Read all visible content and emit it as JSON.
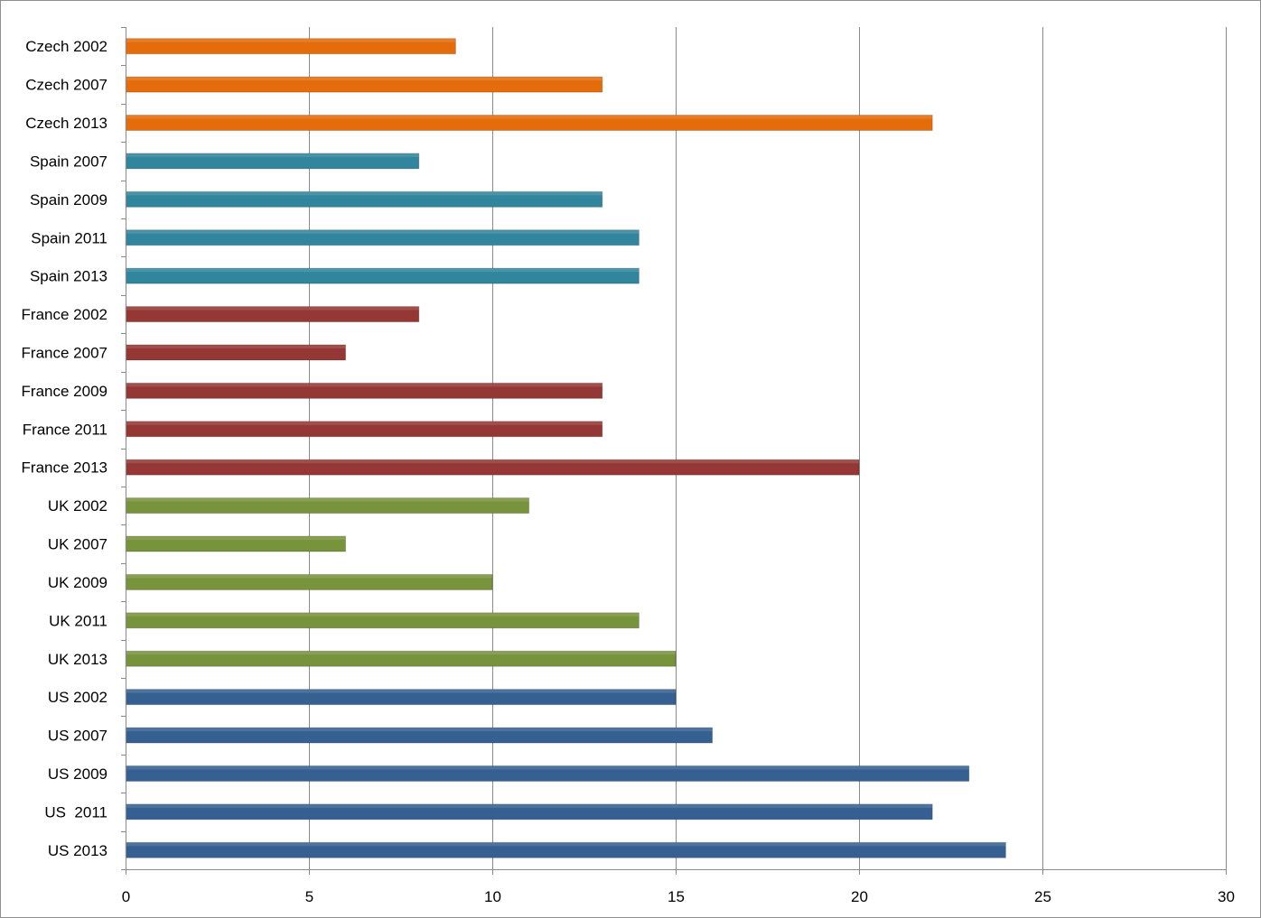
{
  "chart_data": {
    "type": "bar",
    "horizontal": true,
    "categories": [
      "Czech 2002",
      "Czech 2007",
      "Czech 2013",
      "Spain 2007",
      "Spain 2009",
      "Spain 2011",
      "Spain 2013",
      "France 2002",
      "France 2007",
      "France 2009",
      "France 2011",
      "France 2013",
      "UK 2002",
      "UK 2007",
      "UK 2009",
      "UK 2011",
      "UK 2013",
      "US 2002",
      "US 2007",
      "US 2009",
      "US  2011",
      "US 2013"
    ],
    "values": [
      9,
      13,
      22,
      8,
      13,
      14,
      14,
      8,
      6,
      13,
      13,
      20,
      11,
      6,
      10,
      14,
      15,
      15,
      16,
      23,
      22,
      24
    ],
    "bar_colors": [
      "#E46C0A",
      "#E46C0A",
      "#E46C0A",
      "#31859C",
      "#31859C",
      "#31859C",
      "#31859C",
      "#953735",
      "#953735",
      "#953735",
      "#953735",
      "#953735",
      "#77933C",
      "#77933C",
      "#77933C",
      "#77933C",
      "#77933C",
      "#376092",
      "#376092",
      "#376092",
      "#376092",
      "#376092"
    ],
    "xlim": [
      0,
      30
    ],
    "xticks": [
      0,
      5,
      10,
      15,
      20,
      25,
      30
    ],
    "grid": true
  }
}
